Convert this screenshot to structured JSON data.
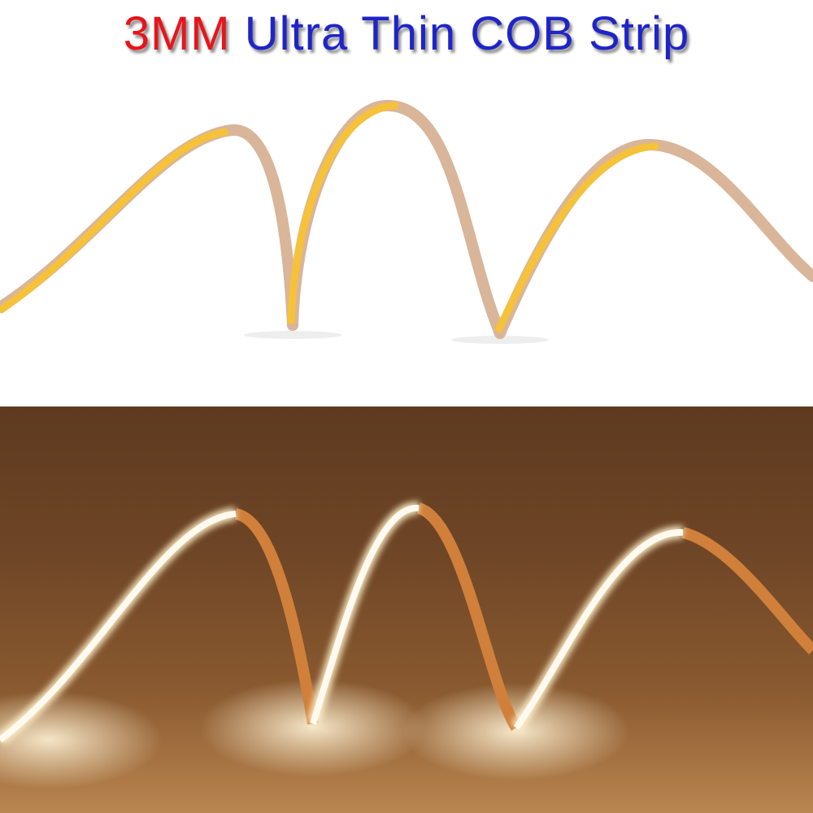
{
  "title": {
    "highlight": "3MM",
    "rest": " Ultra Thin COB Strip"
  },
  "colors": {
    "highlight": "#e8141b",
    "title": "#1f24c8",
    "strip_off": "#f6c23a",
    "strip_back": "#d9b59a",
    "glow": "#fff6e0",
    "background_lit": "#6e4526"
  }
}
